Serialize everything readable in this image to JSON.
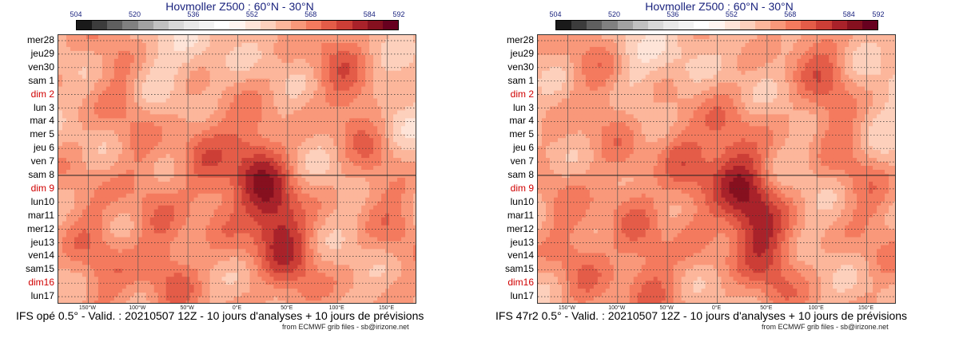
{
  "chart_data": [
    {
      "type": "heatmap",
      "title": "Hovmoller Z500 : 60°N - 30°N",
      "footer": "IFS opé 0.5° - Valid. : 20210507 12Z - 10 jours d'analyses + 10 jours de prévisions",
      "credit": "from ECMWF grib files - sb@irizone.net",
      "x_ticks": [
        "150°W",
        "100°W",
        "50°W",
        "0°E",
        "50°E",
        "100°E",
        "150°E"
      ],
      "x_range": [
        -180,
        180
      ],
      "y_labels": [
        "mer28",
        "jeu29",
        "ven30",
        "sam 1",
        "dim 2",
        "lun 3",
        "mar 4",
        "mer 5",
        "jeu 6",
        "ven 7",
        "sam 8",
        "dim 9",
        "lun10",
        "mar11",
        "mer12",
        "jeu13",
        "ven14",
        "sam15",
        "dim16",
        "lun17"
      ],
      "sunday_labels": [
        "dim 2",
        "dim 9",
        "dim16"
      ],
      "analysis_forecast_split": "sam 8",
      "colorbar_labels": [
        "504",
        "520",
        "536",
        "552",
        "568",
        "584",
        "592"
      ],
      "colorbar_range": [
        504,
        592
      ],
      "variable": "Z500 (dam)"
    },
    {
      "type": "heatmap",
      "title": "Hovmoller Z500 : 60°N - 30°N",
      "footer": "IFS 47r2 0.5° - Valid. : 20210507 12Z - 10 jours d'analyses + 10 jours de prévisions",
      "credit": "from ECMWF grib files - sb@irizone.net",
      "x_ticks": [
        "150°W",
        "100°W",
        "50°W",
        "0°E",
        "50°E",
        "100°E",
        "150°E"
      ],
      "x_range": [
        -180,
        180
      ],
      "y_labels": [
        "mer28",
        "jeu29",
        "ven30",
        "sam 1",
        "dim 2",
        "lun 3",
        "mar 4",
        "mer 5",
        "jeu 6",
        "ven 7",
        "sam 8",
        "dim 9",
        "lun10",
        "mar11",
        "mer12",
        "jeu13",
        "ven14",
        "sam15",
        "dim16",
        "lun17"
      ],
      "sunday_labels": [
        "dim 2",
        "dim 9",
        "dim16"
      ],
      "analysis_forecast_split": "sam 8",
      "colorbar_labels": [
        "504",
        "520",
        "536",
        "552",
        "568",
        "584",
        "592"
      ],
      "colorbar_range": [
        504,
        592
      ],
      "variable": "Z500 (dam)"
    }
  ],
  "colors": {
    "palette": [
      "#1a1a1a",
      "#3c3c3c",
      "#5f5f5f",
      "#808080",
      "#a2a2a2",
      "#c0c0c0",
      "#d8d8d8",
      "#e8e8e8",
      "#f2f2f2",
      "#ffffff",
      "#fff5f0",
      "#fee4d8",
      "#fdd0bc",
      "#fcb69b",
      "#f9987a",
      "#f47a5e",
      "#e45c48",
      "#cc3e36",
      "#a9222a",
      "#86101f",
      "#67001f"
    ],
    "sunday": "#d00000",
    "title": "#1a237e"
  }
}
